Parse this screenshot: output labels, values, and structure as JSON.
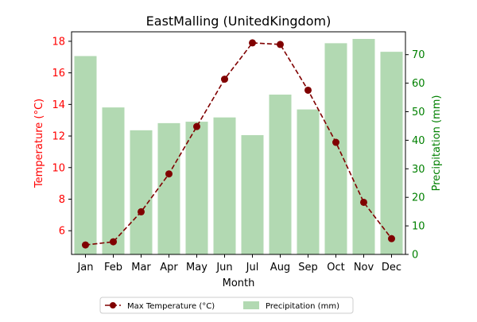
{
  "chart_data": {
    "type": "bar+line",
    "title": "EastMalling (UnitedKingdom)",
    "xlabel": "Month",
    "categories": [
      "Jan",
      "Feb",
      "Mar",
      "Apr",
      "May",
      "Jun",
      "Jul",
      "Aug",
      "Sep",
      "Oct",
      "Nov",
      "Dec"
    ],
    "left_axis": {
      "label": "Temperature (°C)",
      "ylim": [
        4.5,
        18.6
      ],
      "ticks": [
        6,
        8,
        10,
        12,
        14,
        16,
        18
      ],
      "color": "#ff0000"
    },
    "right_axis": {
      "label": "Precipitation (mm)",
      "ylim": [
        0,
        78
      ],
      "ticks": [
        0,
        10,
        20,
        30,
        40,
        50,
        60,
        70
      ],
      "color": "#008000"
    },
    "series": [
      {
        "name": "Max Temperature (°C)",
        "type": "line",
        "axis": "left",
        "color": "#800000",
        "values": [
          5.1,
          5.3,
          7.2,
          9.6,
          12.6,
          15.6,
          17.9,
          17.8,
          14.9,
          11.6,
          7.8,
          5.5
        ]
      },
      {
        "name": "Precipitation (mm)",
        "type": "bar",
        "axis": "right",
        "color": "#b2d9b2",
        "values": [
          69.5,
          51.5,
          43.5,
          46,
          46.5,
          48,
          41.8,
          56,
          50.8,
          74,
          75.5,
          71
        ]
      }
    ],
    "legend_position": "bottom-center",
    "grid": false
  }
}
